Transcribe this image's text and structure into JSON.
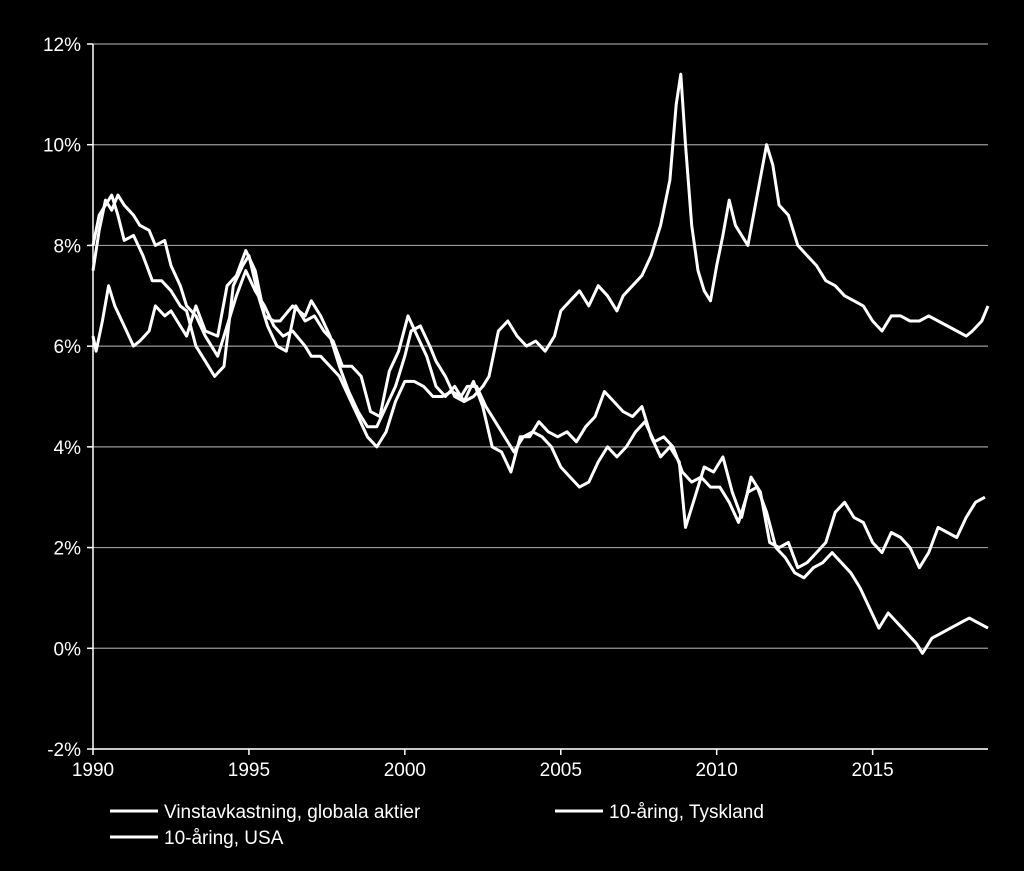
{
  "chart_data": {
    "type": "line",
    "title": "",
    "xlabel": "",
    "ylabel": "",
    "xlim": [
      1990,
      2018.7
    ],
    "ylim": [
      -2,
      12
    ],
    "x_ticks": [
      1990,
      1995,
      2000,
      2005,
      2010,
      2015
    ],
    "x_tick_labels": [
      "1990",
      "1995",
      "2000",
      "2005",
      "2010",
      "2015"
    ],
    "y_ticks": [
      -2,
      0,
      2,
      4,
      6,
      8,
      10,
      12
    ],
    "y_tick_labels": [
      "-2%",
      "0%",
      "2%",
      "4%",
      "6%",
      "8%",
      "10%",
      "12%"
    ],
    "grid": "horizontal",
    "legend_position": "bottom",
    "series": [
      {
        "name": "Vinstavkastning, globala aktier",
        "color": "#ffffff",
        "x": [
          1990.0,
          1990.1,
          1990.3,
          1990.5,
          1990.7,
          1991.0,
          1991.3,
          1991.5,
          1991.8,
          1992.0,
          1992.3,
          1992.5,
          1992.8,
          1993.0,
          1993.3,
          1993.6,
          1994.0,
          1994.3,
          1994.6,
          1994.9,
          1995.2,
          1995.5,
          1995.8,
          1996.0,
          1996.4,
          1996.8,
          1997.0,
          1997.3,
          1997.6,
          1997.9,
          1998.2,
          1998.5,
          1998.8,
          1999.1,
          1999.4,
          1999.7,
          2000.0,
          2000.2,
          2000.5,
          2000.8,
          2001.0,
          2001.3,
          2001.6,
          2001.9,
          2002.2,
          2002.5,
          2002.7,
          2003.0,
          2003.3,
          2003.6,
          2003.9,
          2004.2,
          2004.5,
          2004.8,
          2005.0,
          2005.3,
          2005.6,
          2005.9,
          2006.2,
          2006.5,
          2006.8,
          2007.0,
          2007.3,
          2007.6,
          2007.9,
          2008.2,
          2008.5,
          2008.7,
          2008.85,
          2009.0,
          2009.2,
          2009.4,
          2009.6,
          2009.8,
          2010.0,
          2010.2,
          2010.4,
          2010.6,
          2010.8,
          2011.0,
          2011.3,
          2011.6,
          2011.8,
          2012.0,
          2012.3,
          2012.6,
          2012.9,
          2013.2,
          2013.5,
          2013.8,
          2014.1,
          2014.4,
          2014.7,
          2015.0,
          2015.3,
          2015.6,
          2015.9,
          2016.2,
          2016.5,
          2016.8,
          2017.1,
          2017.4,
          2017.7,
          2018.0,
          2018.2,
          2018.5,
          2018.7
        ],
        "values": [
          6.2,
          5.9,
          6.5,
          7.2,
          6.8,
          6.4,
          6.0,
          6.1,
          6.3,
          6.8,
          6.6,
          6.7,
          6.4,
          6.2,
          6.8,
          6.3,
          6.2,
          7.2,
          7.4,
          7.9,
          7.5,
          6.6,
          6.5,
          6.5,
          6.8,
          6.6,
          6.9,
          6.6,
          6.2,
          5.6,
          5.1,
          4.7,
          4.4,
          4.4,
          4.8,
          5.2,
          5.8,
          6.3,
          6.4,
          6.0,
          5.7,
          5.4,
          5.0,
          4.9,
          5.0,
          5.2,
          5.4,
          6.3,
          6.5,
          6.2,
          6.0,
          6.1,
          5.9,
          6.2,
          6.7,
          6.9,
          7.1,
          6.8,
          7.2,
          7.0,
          6.7,
          7.0,
          7.2,
          7.4,
          7.8,
          8.4,
          9.3,
          10.8,
          11.4,
          10.0,
          8.4,
          7.5,
          7.1,
          6.9,
          7.6,
          8.2,
          8.9,
          8.4,
          8.2,
          8.0,
          9.0,
          10.0,
          9.6,
          8.8,
          8.6,
          8.0,
          7.8,
          7.6,
          7.3,
          7.2,
          7.0,
          6.9,
          6.8,
          6.5,
          6.3,
          6.6,
          6.6,
          6.5,
          6.5,
          6.6,
          6.5,
          6.4,
          6.3,
          6.2,
          6.3,
          6.5,
          6.8
        ]
      },
      {
        "name": "10-åring, Tyskland",
        "color": "#ffffff",
        "x": [
          1990.0,
          1990.2,
          1990.4,
          1990.6,
          1990.8,
          1991.0,
          1991.3,
          1991.5,
          1991.8,
          1992.0,
          1992.3,
          1992.5,
          1992.8,
          1993.0,
          1993.3,
          1993.6,
          1994.0,
          1994.3,
          1994.6,
          1994.9,
          1995.2,
          1995.5,
          1995.8,
          1996.1,
          1996.4,
          1996.8,
          1997.0,
          1997.3,
          1997.6,
          1997.9,
          1998.2,
          1998.5,
          1998.8,
          1999.1,
          1999.4,
          1999.7,
          2000.0,
          2000.3,
          2000.6,
          2000.9,
          2001.2,
          2001.5,
          2001.8,
          2002.0,
          2002.3,
          2002.6,
          2002.9,
          2003.2,
          2003.5,
          2003.8,
          2004.1,
          2004.4,
          2004.7,
          2005.0,
          2005.3,
          2005.6,
          2005.9,
          2006.2,
          2006.5,
          2006.8,
          2007.1,
          2007.4,
          2007.7,
          2008.0,
          2008.3,
          2008.6,
          2008.9,
          2009.2,
          2009.5,
          2009.8,
          2010.1,
          2010.4,
          2010.7,
          2011.0,
          2011.3,
          2011.6,
          2011.9,
          2012.2,
          2012.5,
          2012.8,
          2013.1,
          2013.4,
          2013.7,
          2014.0,
          2014.3,
          2014.6,
          2014.9,
          2015.2,
          2015.5,
          2015.8,
          2016.1,
          2016.4,
          2016.6,
          2016.9,
          2017.2,
          2017.5,
          2017.8,
          2018.1,
          2018.4,
          2018.7
        ],
        "values": [
          7.5,
          8.3,
          8.9,
          8.7,
          9.0,
          8.8,
          8.6,
          8.4,
          8.3,
          8.0,
          8.1,
          7.6,
          7.2,
          6.8,
          6.6,
          6.2,
          5.8,
          6.4,
          7.0,
          7.5,
          7.1,
          6.8,
          6.4,
          6.2,
          6.3,
          6.0,
          5.8,
          5.8,
          5.6,
          5.4,
          5.0,
          4.6,
          4.2,
          4.0,
          4.3,
          4.9,
          5.3,
          5.3,
          5.2,
          5.0,
          5.0,
          5.1,
          5.0,
          5.2,
          5.2,
          4.8,
          4.5,
          4.2,
          3.9,
          4.2,
          4.3,
          4.2,
          4.0,
          3.6,
          3.4,
          3.2,
          3.3,
          3.7,
          4.0,
          3.8,
          4.0,
          4.3,
          4.5,
          4.1,
          4.2,
          4.0,
          3.5,
          3.3,
          3.4,
          3.2,
          3.2,
          2.9,
          2.5,
          3.1,
          3.2,
          2.7,
          2.0,
          1.8,
          1.5,
          1.4,
          1.6,
          1.7,
          1.9,
          1.7,
          1.5,
          1.2,
          0.8,
          0.4,
          0.7,
          0.5,
          0.3,
          0.1,
          -0.1,
          0.2,
          0.3,
          0.4,
          0.5,
          0.6,
          0.5,
          0.4
        ]
      },
      {
        "name": "10-åring, USA",
        "color": "#ffffff",
        "x": [
          1990.0,
          1990.2,
          1990.4,
          1990.6,
          1990.8,
          1991.0,
          1991.3,
          1991.6,
          1991.9,
          1992.2,
          1992.5,
          1992.8,
          1993.0,
          1993.3,
          1993.6,
          1993.9,
          1994.2,
          1994.5,
          1994.8,
          1995.0,
          1995.3,
          1995.6,
          1995.9,
          1996.2,
          1996.5,
          1996.8,
          1997.1,
          1997.4,
          1997.7,
          1998.0,
          1998.3,
          1998.6,
          1998.9,
          1999.2,
          1999.5,
          1999.8,
          2000.1,
          2000.4,
          2000.7,
          2001.0,
          2001.3,
          2001.6,
          2001.9,
          2002.2,
          2002.5,
          2002.8,
          2003.1,
          2003.4,
          2003.7,
          2004.0,
          2004.3,
          2004.6,
          2004.9,
          2005.2,
          2005.5,
          2005.8,
          2006.1,
          2006.4,
          2006.7,
          2007.0,
          2007.3,
          2007.6,
          2007.9,
          2008.2,
          2008.5,
          2008.8,
          2009.0,
          2009.3,
          2009.6,
          2009.9,
          2010.2,
          2010.5,
          2010.8,
          2011.1,
          2011.4,
          2011.7,
          2012.0,
          2012.3,
          2012.6,
          2012.9,
          2013.2,
          2013.5,
          2013.8,
          2014.1,
          2014.4,
          2014.7,
          2015.0,
          2015.3,
          2015.6,
          2015.9,
          2016.2,
          2016.5,
          2016.8,
          2017.1,
          2017.4,
          2017.7,
          2018.0,
          2018.3,
          2018.6
        ],
        "values": [
          8.0,
          8.6,
          8.8,
          9.0,
          8.6,
          8.1,
          8.2,
          7.8,
          7.3,
          7.3,
          7.1,
          6.8,
          6.7,
          6.0,
          5.7,
          5.4,
          5.6,
          7.2,
          7.6,
          7.8,
          7.0,
          6.4,
          6.0,
          5.9,
          6.8,
          6.5,
          6.6,
          6.3,
          6.1,
          5.6,
          5.6,
          5.4,
          4.7,
          4.6,
          5.5,
          5.9,
          6.6,
          6.2,
          5.8,
          5.2,
          5.0,
          5.2,
          4.9,
          5.3,
          4.8,
          4.0,
          3.9,
          3.5,
          4.2,
          4.2,
          4.5,
          4.3,
          4.2,
          4.3,
          4.1,
          4.4,
          4.6,
          5.1,
          4.9,
          4.7,
          4.6,
          4.8,
          4.2,
          3.8,
          4.0,
          3.7,
          2.4,
          3.0,
          3.6,
          3.5,
          3.8,
          3.1,
          2.6,
          3.4,
          3.1,
          2.1,
          2.0,
          2.1,
          1.6,
          1.7,
          1.9,
          2.1,
          2.7,
          2.9,
          2.6,
          2.5,
          2.1,
          1.9,
          2.3,
          2.2,
          2.0,
          1.6,
          1.9,
          2.4,
          2.3,
          2.2,
          2.6,
          2.9,
          3.0
        ]
      }
    ]
  }
}
